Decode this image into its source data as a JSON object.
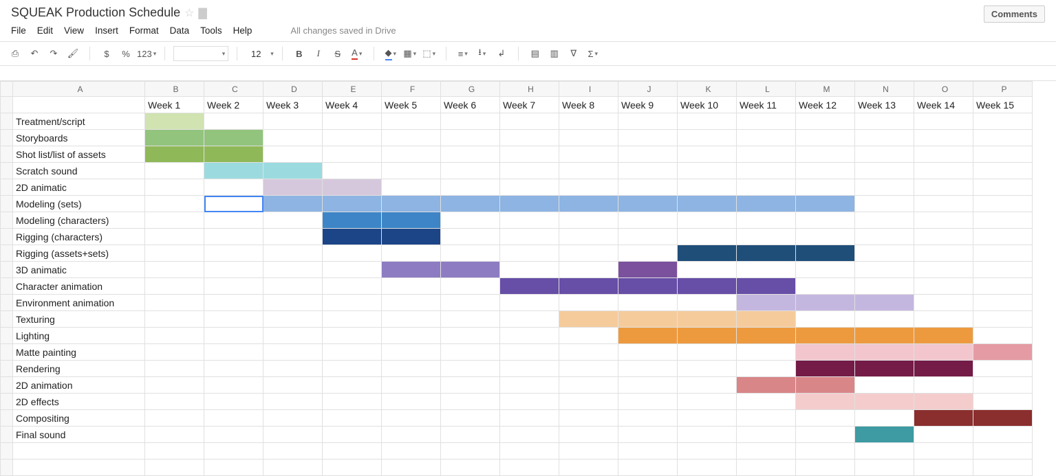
{
  "doc_title": "SQUEAK Production Schedule",
  "comments_label": "Comments",
  "menus": [
    "File",
    "Edit",
    "View",
    "Insert",
    "Format",
    "Data",
    "Tools",
    "Help"
  ],
  "save_status": "All changes saved in Drive",
  "toolbar": {
    "currency": "$",
    "percent": "%",
    "decimals": "123",
    "font_size": "12"
  },
  "columns": [
    "A",
    "B",
    "C",
    "D",
    "E",
    "F",
    "G",
    "H",
    "I",
    "J",
    "K",
    "L",
    "M",
    "N",
    "O",
    "P"
  ],
  "week_headers": [
    "",
    "Week 1",
    "Week 2",
    "Week 3",
    "Week 4",
    "Week 5",
    "Week 6",
    "Week 7",
    "Week 8",
    "Week 9",
    "Week 10",
    "Week 11",
    "Week 12",
    "Week 13",
    "Week 14",
    "Week 15"
  ],
  "tasks": [
    "Treatment/script",
    "Storyboards",
    "Shot list/list of assets",
    "Scratch sound",
    "2D animatic",
    "Modeling (sets)",
    "Modeling (characters)",
    "Rigging (characters)",
    "Rigging (assets+sets)",
    "3D animatic",
    "Character animation",
    "Environment animation",
    "Texturing",
    "Lighting",
    "Matte painting",
    "Rendering",
    "2D animation",
    "2D effects",
    "Compositing",
    "Final sound"
  ],
  "gantt": [
    {
      "row": 0,
      "cells": {
        "1": "#d0e3b1"
      }
    },
    {
      "row": 1,
      "cells": {
        "1": "#93c47d",
        "2": "#93c47d"
      }
    },
    {
      "row": 2,
      "cells": {
        "1": "#8fb958",
        "2": "#8fb958"
      }
    },
    {
      "row": 3,
      "cells": {
        "2": "#9bdbe0",
        "3": "#9bdbe0"
      }
    },
    {
      "row": 4,
      "cells": {
        "3": "#d5c8dc",
        "4": "#d5c8dc"
      }
    },
    {
      "row": 5,
      "cells": {
        "2": "#ffffff",
        "3": "#8db4e2",
        "4": "#8db4e2",
        "5": "#8db4e2",
        "6": "#8db4e2",
        "7": "#8db4e2",
        "8": "#8db4e2",
        "9": "#8db4e2",
        "10": "#8db4e2",
        "11": "#8db4e2",
        "12": "#8db4e2"
      }
    },
    {
      "row": 6,
      "cells": {
        "4": "#3d85c6",
        "5": "#3d85c6"
      }
    },
    {
      "row": 7,
      "cells": {
        "4": "#1c4587",
        "5": "#1c4587"
      }
    },
    {
      "row": 8,
      "cells": {
        "10": "#1f4e79",
        "11": "#1f4e79",
        "12": "#1f4e79"
      }
    },
    {
      "row": 9,
      "cells": {
        "5": "#8e7cc3",
        "6": "#8e7cc3",
        "9": "#7b519d"
      }
    },
    {
      "row": 10,
      "cells": {
        "7": "#674ea7",
        "8": "#674ea7",
        "9": "#674ea7",
        "10": "#674ea7",
        "11": "#674ea7"
      }
    },
    {
      "row": 11,
      "cells": {
        "11": "#c4b7df",
        "12": "#c4b7df",
        "13": "#c4b7df"
      }
    },
    {
      "row": 12,
      "cells": {
        "8": "#f6cb9c",
        "9": "#f6cb9c",
        "10": "#f6cb9c",
        "11": "#f6cb9c"
      }
    },
    {
      "row": 13,
      "cells": {
        "9": "#ed9a3f",
        "10": "#ed9a3f",
        "11": "#ed9a3f",
        "12": "#ed9a3f",
        "13": "#ed9a3f",
        "14": "#ed9a3f"
      }
    },
    {
      "row": 14,
      "cells": {
        "12": "#f2c6cc",
        "13": "#f2c6cc",
        "14": "#f2c6cc",
        "15": "#e59ba4"
      }
    },
    {
      "row": 15,
      "cells": {
        "12": "#741b47",
        "13": "#741b47",
        "14": "#741b47"
      }
    },
    {
      "row": 16,
      "cells": {
        "11": "#d98689",
        "12": "#d98689"
      }
    },
    {
      "row": 17,
      "cells": {
        "12": "#f4cccc",
        "13": "#f4cccc",
        "14": "#f4cccc"
      }
    },
    {
      "row": 18,
      "cells": {
        "14": "#8b2e2e",
        "15": "#8b2e2e"
      }
    },
    {
      "row": 19,
      "cells": {
        "13": "#3e9aa3"
      }
    }
  ],
  "selected_cell": {
    "row": 5,
    "col": 2
  },
  "highlight_col_letter": "C"
}
